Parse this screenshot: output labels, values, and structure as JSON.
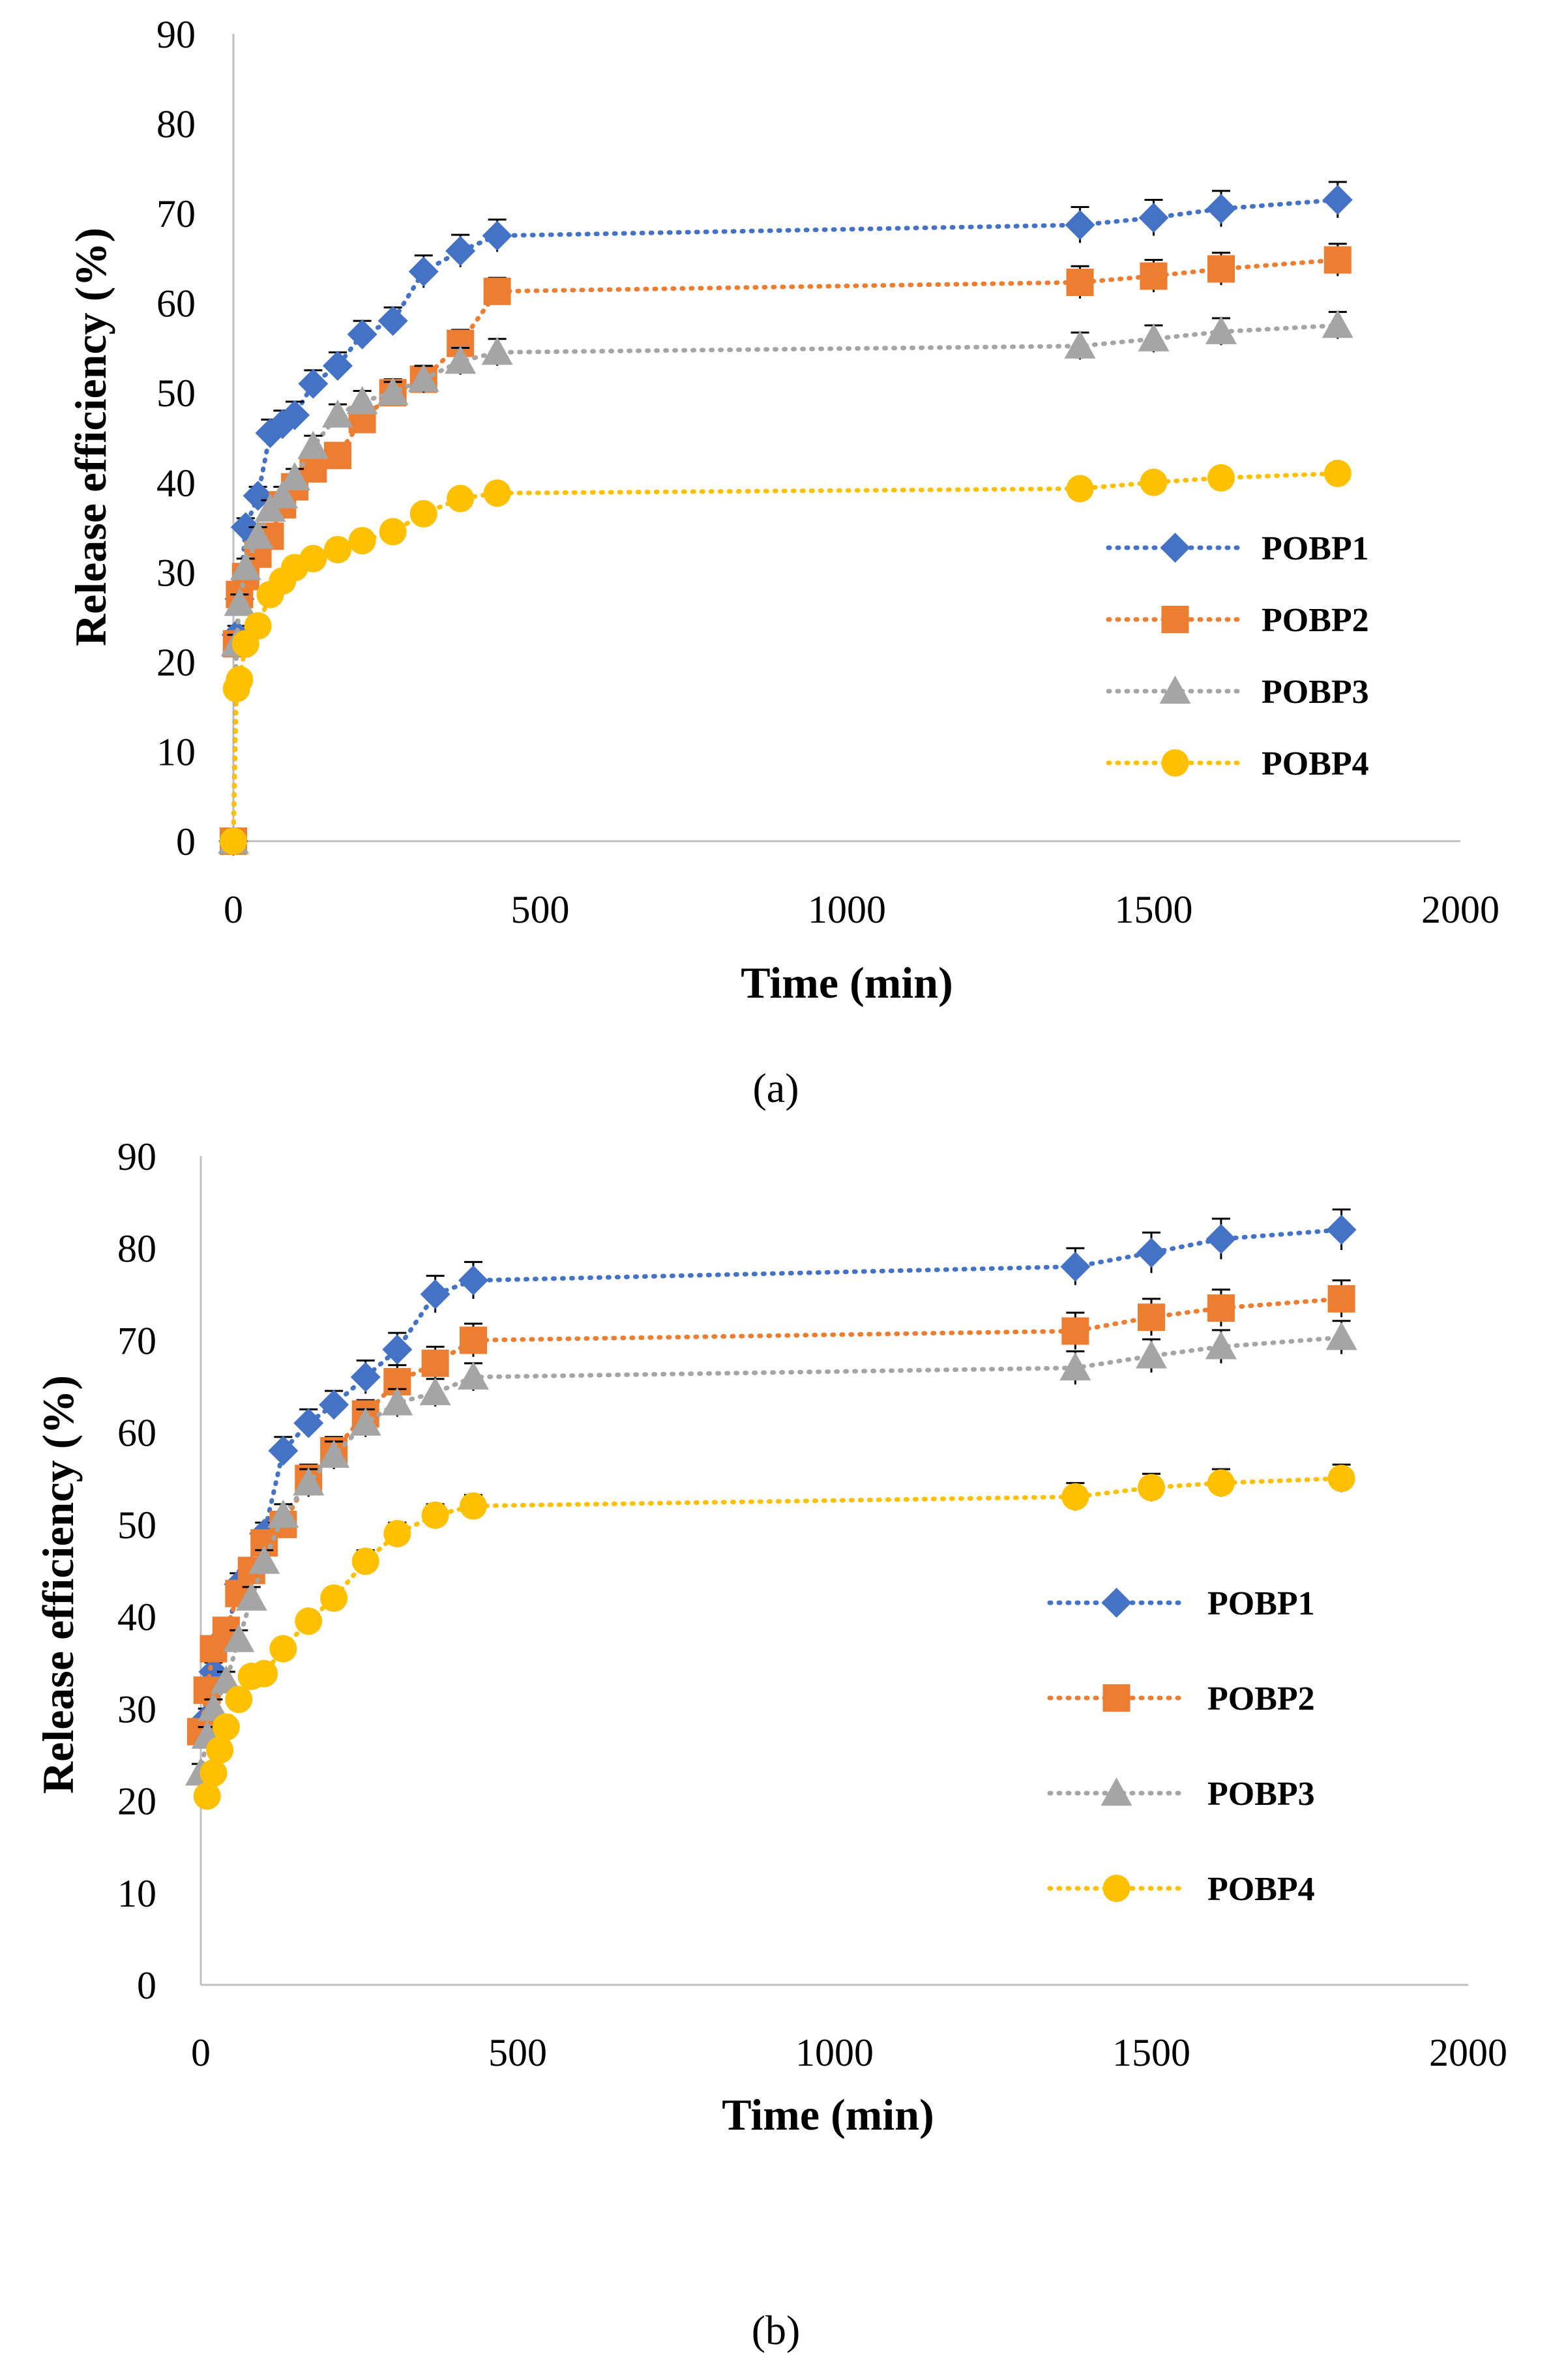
{
  "chart_data": [
    {
      "type": "line",
      "panel_label": "(a)",
      "xlabel": "Time (min)",
      "ylabel": "Release efficiency (%)",
      "xlim": [
        0,
        2000
      ],
      "ylim": [
        0,
        90
      ],
      "xticks": [
        0,
        500,
        1000,
        1500,
        2000
      ],
      "yticks": [
        0,
        10,
        20,
        30,
        40,
        50,
        60,
        70,
        80,
        90
      ],
      "legend_position": "right",
      "series": [
        {
          "name": "POBP1",
          "color": "#4472c4",
          "marker": "diamond",
          "x": [
            0,
            5,
            10,
            20,
            40,
            60,
            80,
            100,
            130,
            170,
            210,
            260,
            310,
            370,
            430,
            1380,
            1500,
            1610,
            1800
          ],
          "y": [
            0,
            23,
            27,
            35,
            38.5,
            45.5,
            46.5,
            47.5,
            51,
            53,
            56.5,
            58,
            63.5,
            65.8,
            67.5,
            68.7,
            69.5,
            70.5,
            71.5
          ],
          "err": [
            0,
            1,
            1,
            1,
            1,
            1.5,
            1.5,
            1.5,
            1.5,
            1.5,
            1.5,
            1.5,
            1.8,
            1.8,
            1.8,
            2,
            2,
            2,
            2
          ]
        },
        {
          "name": "POBP2",
          "color": "#ed7d31",
          "marker": "square",
          "x": [
            0,
            5,
            10,
            20,
            40,
            60,
            80,
            100,
            130,
            170,
            210,
            260,
            310,
            370,
            430,
            1380,
            1500,
            1610,
            1800
          ],
          "y": [
            0,
            22,
            27.5,
            29.5,
            32,
            34,
            37.5,
            39.5,
            41.5,
            43,
            47,
            50,
            51.5,
            55.5,
            61.3,
            62.3,
            63,
            63.8,
            64.8
          ],
          "err": [
            0,
            1,
            1,
            1,
            1,
            1.2,
            1.2,
            1.2,
            1.2,
            1.2,
            1.5,
            1.5,
            1.5,
            1.5,
            1.5,
            1.8,
            1.8,
            1.8,
            1.8
          ]
        },
        {
          "name": "POBP3",
          "color": "#a5a5a5",
          "marker": "triangle",
          "x": [
            0,
            5,
            10,
            20,
            40,
            60,
            80,
            100,
            130,
            170,
            210,
            260,
            310,
            370,
            430,
            1380,
            1500,
            1610,
            1800
          ],
          "y": [
            0,
            22,
            26.5,
            30.5,
            34,
            37,
            38.5,
            40.5,
            44,
            47.5,
            49,
            50,
            51.5,
            53.5,
            54.5,
            55.2,
            56,
            56.8,
            57.5
          ],
          "err": [
            0,
            1,
            1,
            1,
            1,
            1,
            1,
            1,
            1.2,
            1.2,
            1.2,
            1.2,
            1.5,
            1.5,
            1.5,
            1.5,
            1.5,
            1.5,
            1.5
          ]
        },
        {
          "name": "POBP4",
          "color": "#ffc000",
          "marker": "circle",
          "x": [
            0,
            5,
            10,
            20,
            40,
            60,
            80,
            100,
            130,
            170,
            210,
            260,
            310,
            370,
            430,
            1380,
            1500,
            1610,
            1800
          ],
          "y": [
            0,
            17,
            18,
            22,
            24,
            27.5,
            29,
            30.5,
            31.5,
            32.5,
            33.5,
            34.5,
            36.5,
            38.2,
            38.8,
            39.3,
            40,
            40.5,
            41
          ],
          "err": [
            0,
            0.8,
            0.8,
            0.8,
            0.8,
            0.8,
            0.8,
            0.8,
            0.8,
            0.8,
            1,
            1,
            1,
            1,
            1,
            1,
            1,
            1,
            1
          ]
        }
      ]
    },
    {
      "type": "line",
      "panel_label": "(b)",
      "xlabel": "Time (min)",
      "ylabel": "Release efficiency (%)",
      "xlim": [
        0,
        2000
      ],
      "ylim": [
        0,
        90
      ],
      "xticks": [
        0,
        500,
        1000,
        1500,
        2000
      ],
      "yticks": [
        0,
        10,
        20,
        30,
        40,
        50,
        60,
        70,
        80,
        90
      ],
      "legend_position": "right",
      "series": [
        {
          "name": "POBP1",
          "color": "#4472c4",
          "marker": "diamond",
          "x": [
            10,
            20,
            40,
            60,
            80,
            100,
            130,
            170,
            210,
            260,
            310,
            370,
            430,
            1380,
            1500,
            1610,
            1800
          ],
          "y": [
            29,
            34,
            38,
            43.5,
            45,
            49,
            58,
            61,
            63,
            66,
            69,
            75,
            76.5,
            78,
            79.5,
            81,
            82
          ],
          "err": [
            1,
            1,
            1,
            1.2,
            1.2,
            1.2,
            1.5,
            1.5,
            1.5,
            1.8,
            1.8,
            2,
            2,
            2,
            2.2,
            2.2,
            2.2
          ]
        },
        {
          "name": "POBP2",
          "color": "#ed7d31",
          "marker": "square",
          "x": [
            0,
            10,
            20,
            40,
            60,
            80,
            100,
            130,
            170,
            210,
            260,
            310,
            370,
            430,
            1380,
            1500,
            1610,
            1800
          ],
          "y": [
            27.5,
            32,
            36.5,
            38.5,
            42.5,
            45,
            48,
            50,
            55,
            58,
            62,
            65.5,
            67.5,
            70,
            71,
            72.5,
            73.5,
            74.5
          ],
          "err": [
            1,
            1,
            1,
            1,
            1.2,
            1.2,
            1.2,
            1.2,
            1.5,
            1.5,
            1.5,
            1.8,
            1.8,
            1.8,
            2,
            2,
            2,
            2
          ]
        },
        {
          "name": "POBP3",
          "color": "#a5a5a5",
          "marker": "triangle",
          "x": [
            0,
            10,
            20,
            40,
            60,
            80,
            100,
            130,
            170,
            210,
            260,
            310,
            370,
            430,
            1380,
            1500,
            1610,
            1800
          ],
          "y": [
            23,
            27,
            30,
            33,
            37.5,
            42,
            46,
            51,
            54.5,
            57.5,
            61,
            63.2,
            64.3,
            66,
            67,
            68.3,
            69.3,
            70.3
          ],
          "err": [
            1,
            1,
            1,
            1,
            1,
            1.2,
            1.2,
            1.2,
            1.5,
            1.5,
            1.5,
            1.5,
            1.5,
            1.5,
            1.8,
            1.8,
            1.8,
            1.8
          ]
        },
        {
          "name": "POBP4",
          "color": "#ffc000",
          "marker": "circle",
          "x": [
            10,
            20,
            30,
            40,
            60,
            80,
            100,
            130,
            170,
            210,
            260,
            310,
            370,
            430,
            1380,
            1500,
            1610,
            1800
          ],
          "y": [
            20.5,
            23,
            25.5,
            28,
            31,
            33.5,
            33.8,
            36.5,
            39.5,
            42,
            46,
            49,
            51,
            52,
            53,
            54,
            54.5,
            55
          ],
          "err": [
            0.8,
            0.8,
            0.8,
            0.8,
            0.8,
            0.8,
            0.8,
            1,
            1,
            1,
            1.2,
            1.2,
            1.2,
            1.2,
            1.5,
            1.5,
            1.5,
            1.5
          ]
        }
      ]
    }
  ]
}
